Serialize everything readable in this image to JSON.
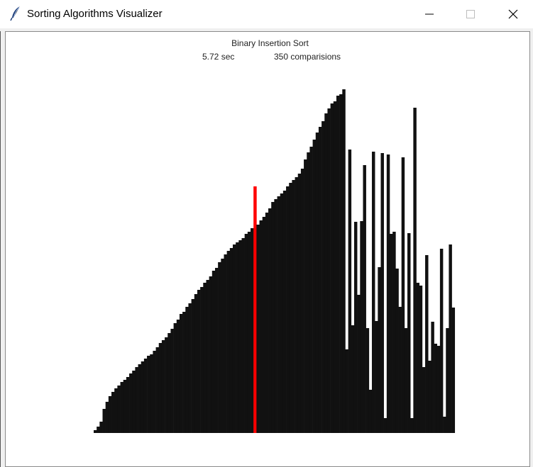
{
  "window": {
    "title": "Sorting Algorithms Visualizer",
    "icon": "feather-icon",
    "controls": [
      "minimize-icon",
      "maximize-icon",
      "close-icon"
    ]
  },
  "visualizer": {
    "algorithm": "Binary Insertion Sort",
    "time": "5.72 sec",
    "comparisons": "350 comparisions",
    "bar_color": "#111111",
    "highlight_color": "#ff0000",
    "highlight_index": 54,
    "bar_values": [
      4,
      9,
      16,
      34,
      44,
      52,
      58,
      63,
      67,
      72,
      75,
      79,
      84,
      88,
      93,
      97,
      101,
      105,
      109,
      111,
      116,
      121,
      127,
      131,
      135,
      141,
      147,
      155,
      160,
      168,
      171,
      178,
      183,
      189,
      196,
      202,
      206,
      212,
      216,
      221,
      229,
      233,
      241,
      246,
      252,
      257,
      261,
      266,
      269,
      272,
      275,
      281,
      284,
      289,
      348,
      294,
      300,
      305,
      311,
      317,
      326,
      330,
      334,
      338,
      342,
      348,
      353,
      357,
      361,
      366,
      373,
      386,
      396,
      404,
      414,
      424,
      432,
      440,
      451,
      458,
      465,
      468,
      476,
      478,
      485,
      118,
      400,
      152,
      298,
      195,
      299,
      378,
      148,
      61,
      397,
      158,
      234,
      395,
      21,
      393,
      281,
      284,
      232,
      178,
      389,
      148,
      282,
      21,
      459,
      212,
      208,
      93,
      251,
      102,
      157,
      126,
      123,
      260,
      23,
      148,
      266,
      177
    ]
  }
}
